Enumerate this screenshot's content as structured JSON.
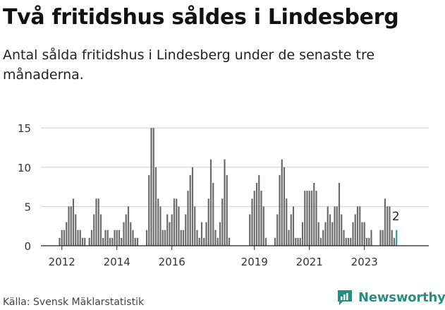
{
  "title": "Två fritidshus såldes i Lindesberg",
  "subtitle": "Antal sålda fritidshus i Lindesberg under de senaste tre månaderna.",
  "source": "Källa: Svensk Mäklarstatistik",
  "brand": "Newsworthy",
  "colors": {
    "bar": "#6b6b6b",
    "highlight": "#2a9d8f",
    "grid": "#d0d0d0",
    "brand": "#2b8c7f"
  },
  "chart_data": {
    "type": "bar",
    "title": "Två fritidshus såldes i Lindesberg",
    "xlabel": "",
    "ylabel": "",
    "ylim": [
      0,
      16
    ],
    "yticks": [
      0,
      5,
      10,
      15
    ],
    "xticks": [
      "2012",
      "2014",
      "2016",
      "2019",
      "2021",
      "2023"
    ],
    "grid": true,
    "start": "2011-12",
    "values": [
      1,
      2,
      2,
      3,
      5,
      5,
      6,
      4,
      2,
      2,
      1,
      1,
      0,
      1,
      2,
      4,
      6,
      6,
      4,
      1,
      2,
      2,
      1,
      1,
      2,
      2,
      2,
      1,
      3,
      4,
      5,
      3,
      2,
      1,
      1,
      0,
      0,
      0,
      2,
      9,
      15,
      15,
      10,
      6,
      5,
      2,
      2,
      4,
      3,
      4,
      6,
      6,
      5,
      2,
      2,
      4,
      7,
      9,
      10,
      5,
      2,
      1,
      3,
      1,
      3,
      6,
      11,
      8,
      2,
      1,
      3,
      6,
      11,
      9,
      1,
      0,
      0,
      0,
      0,
      0,
      0,
      0,
      0,
      4,
      6,
      7,
      8,
      9,
      7,
      5,
      1,
      0,
      0,
      0,
      1,
      4,
      9,
      11,
      10,
      6,
      2,
      4,
      5,
      1,
      1,
      1,
      3,
      7,
      7,
      7,
      7,
      8,
      7,
      3,
      1,
      2,
      3,
      5,
      4,
      3,
      5,
      5,
      8,
      4,
      2,
      1,
      1,
      1,
      3,
      4,
      5,
      5,
      3,
      3,
      1,
      1,
      2,
      0,
      0,
      0,
      2,
      2,
      6,
      5,
      5,
      2,
      1,
      2
    ],
    "highlight_index": 147,
    "annotation": "2"
  }
}
